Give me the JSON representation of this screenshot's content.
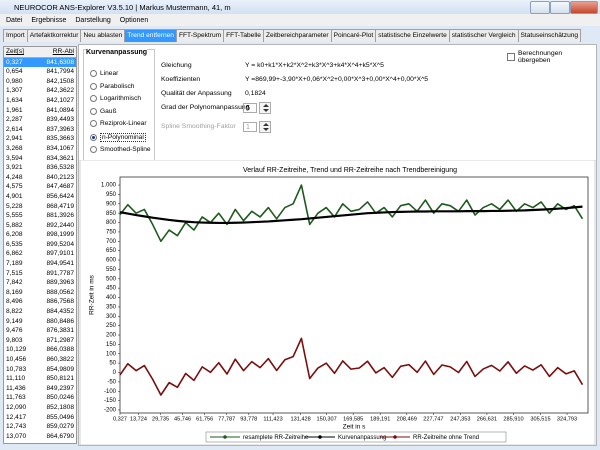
{
  "window": {
    "title": "NEUROCOR ANS-Explorer V3.5.10 | Markus Mustermann, 41, m"
  },
  "menu": [
    "Datei",
    "Ergebnisse",
    "Darstellung",
    "Optionen"
  ],
  "tabs": [
    "Import",
    "Artefaktkorrektur",
    "Neu ablasten",
    "Trend entfernen",
    "FFT-Spektrum",
    "FFT-Tabelle",
    "Zeitbereichparameter",
    "Poincaré-Plot",
    "statistische Einzelwerte",
    "statistischer Vergleich",
    "Statuseinschätzung"
  ],
  "active_tab": 3,
  "table": {
    "columns": [
      "Zeit[s]",
      "RR-Abl"
    ],
    "selected_row": 0,
    "rows": [
      [
        "0,327",
        "841,6308"
      ],
      [
        "0,654",
        "841,7994"
      ],
      [
        "0,980",
        "842,1508"
      ],
      [
        "1,307",
        "842,3622"
      ],
      [
        "1,634",
        "842,1027"
      ],
      [
        "1,961",
        "841,0894"
      ],
      [
        "2,287",
        "839,4493"
      ],
      [
        "2,614",
        "837,3963"
      ],
      [
        "2,941",
        "835,3663"
      ],
      [
        "3,268",
        "834,1067"
      ],
      [
        "3,594",
        "834,3621"
      ],
      [
        "3,921",
        "836,5328"
      ],
      [
        "4,248",
        "840,2123"
      ],
      [
        "4,575",
        "847,4687"
      ],
      [
        "4,901",
        "856,6424"
      ],
      [
        "5,228",
        "868,4719"
      ],
      [
        "5,555",
        "881,3926"
      ],
      [
        "5,882",
        "892,2440"
      ],
      [
        "6,208",
        "898,1999"
      ],
      [
        "6,535",
        "899,5204"
      ],
      [
        "6,862",
        "897,9101"
      ],
      [
        "7,189",
        "894,9541"
      ],
      [
        "7,515",
        "891,7787"
      ],
      [
        "7,842",
        "889,3963"
      ],
      [
        "8,169",
        "888,0562"
      ],
      [
        "8,496",
        "886,7568"
      ],
      [
        "8,822",
        "884,4352"
      ],
      [
        "9,149",
        "880,8486"
      ],
      [
        "9,476",
        "876,3831"
      ],
      [
        "9,803",
        "871,2987"
      ],
      [
        "10,129",
        "866,0388"
      ],
      [
        "10,456",
        "860,3822"
      ],
      [
        "10,783",
        "854,9809"
      ],
      [
        "11,110",
        "850,8121"
      ],
      [
        "11,436",
        "849,2397"
      ],
      [
        "11,763",
        "850,0246"
      ],
      [
        "12,090",
        "852,1808"
      ],
      [
        "12,417",
        "855,0496"
      ],
      [
        "12,743",
        "859,0279"
      ],
      [
        "13,070",
        "864,6790"
      ]
    ]
  },
  "fit": {
    "group_title": "Kurvenanpassung",
    "options": [
      "Linear",
      "Parabolisch",
      "Logarithmisch",
      "Gauß",
      "Reziprok-Linear",
      "n-Polynominal",
      "Smoothed-Spline"
    ],
    "selected": 5,
    "fields": [
      {
        "label": "Gleichung",
        "value": "Y = k0+k1*X+k2*X^2+k3*X^3+k4*X^4+k5*X^5"
      },
      {
        "label": "Koeffizienten",
        "value": "Y =869,99+-3,90*X+0,06*X^2+0,00*X^3+0,00*X^4+0,00*X^5"
      },
      {
        "label": "Qualität der Anpassung",
        "value": "0,1824"
      },
      {
        "label": "Grad der Polynomanpassung",
        "value": "5",
        "spinner": true
      },
      {
        "label": "Spline Smoothing-Faktor",
        "value": "1",
        "spinner": true,
        "disabled": true
      }
    ],
    "checkbox": "Berechnungen übergeben"
  },
  "chart_data": {
    "type": "line",
    "title": "Verlauf RR-Zeitreihe,  Trend und RR-Zeitreihe nach Trendbereinigung",
    "xlabel": "Zeit in s",
    "ylabel": "RR-Zeit in ms",
    "xlim": [
      0.327,
      340
    ],
    "ylim": [
      -216,
      1043
    ],
    "xticks": [
      {
        "value": 0.327,
        "label": "0,327"
      },
      {
        "value": 13.724,
        "label": "13,724"
      },
      {
        "value": 29.735,
        "label": "29,735"
      },
      {
        "value": 45.746,
        "label": "45,746"
      },
      {
        "value": 61.756,
        "label": "61,756"
      },
      {
        "value": 77.787,
        "label": "77,787"
      },
      {
        "value": 93.778,
        "label": "93,778"
      },
      {
        "value": 111.423,
        "label": "111,423"
      },
      {
        "value": 131.428,
        "label": "131,428"
      },
      {
        "value": 150.307,
        "label": "150,307"
      },
      {
        "value": 169.585,
        "label": "169,585"
      },
      {
        "value": 189.191,
        "label": "189,191"
      },
      {
        "value": 208.469,
        "label": "208,469"
      },
      {
        "value": 227.747,
        "label": "227,747"
      },
      {
        "value": 247.353,
        "label": "247,353"
      },
      {
        "value": 266.631,
        "label": "266,631"
      },
      {
        "value": 285.91,
        "label": "285,910"
      },
      {
        "value": 305.515,
        "label": "305,515"
      },
      {
        "value": 324.793,
        "label": "324,793"
      }
    ],
    "yticks": [
      {
        "value": 1000,
        "label": "1.000"
      },
      950,
      900,
      850,
      800,
      750,
      700,
      650,
      600,
      550,
      500,
      450,
      400,
      350,
      300,
      250,
      200,
      150,
      100,
      50,
      0,
      -50,
      -100,
      -150,
      -200
    ],
    "grid": false,
    "legend": "bottom",
    "x": [
      0.327,
      6,
      12,
      18,
      24,
      30,
      36,
      42,
      48,
      54,
      60,
      66,
      72,
      78,
      84,
      90,
      96,
      102,
      108,
      114,
      120,
      126,
      132,
      138,
      144,
      150,
      156,
      162,
      168,
      174,
      180,
      186,
      192,
      198,
      204,
      210,
      216,
      222,
      228,
      234,
      240,
      246,
      252,
      258,
      264,
      270,
      276,
      282,
      288,
      294,
      300,
      306,
      312,
      318,
      324,
      330,
      336
    ],
    "series": [
      {
        "name": "resamplete RR-Zeitreihe",
        "color": "#1e5a1e",
        "values": [
          842,
          895,
          850,
          870,
          790,
          700,
          760,
          730,
          800,
          760,
          830,
          800,
          850,
          790,
          870,
          810,
          860,
          830,
          880,
          820,
          880,
          900,
          1000,
          790,
          850,
          880,
          830,
          900,
          860,
          870,
          910,
          850,
          880,
          830,
          890,
          900,
          860,
          920,
          850,
          900,
          890,
          860,
          920,
          840,
          880,
          900,
          870,
          920,
          860,
          900,
          880,
          910,
          850,
          900,
          870,
          890,
          820
        ]
      },
      {
        "name": "Kurvenanpassung",
        "color": "#000000",
        "values": [
          855,
          848,
          840,
          833,
          826,
          820,
          814,
          809,
          805,
          802,
          800,
          799,
          798,
          798,
          799,
          800,
          802,
          804,
          806,
          809,
          812,
          815,
          818,
          822,
          826,
          830,
          834,
          838,
          842,
          846,
          850,
          852,
          854,
          856,
          857,
          858,
          859,
          859,
          860,
          860,
          860,
          860,
          861,
          861,
          861,
          862,
          862,
          863,
          864,
          865,
          867,
          869,
          871,
          874,
          877,
          881,
          885
        ]
      },
      {
        "name": "RR-Zeitreihe ohne Trend",
        "color": "#7a0e0e",
        "values": [
          -13,
          47,
          10,
          37,
          -36,
          -120,
          -54,
          -79,
          -5,
          -42,
          30,
          1,
          52,
          -8,
          71,
          10,
          58,
          26,
          74,
          11,
          68,
          85,
          182,
          -32,
          24,
          50,
          -4,
          62,
          18,
          24,
          60,
          -2,
          26,
          -26,
          33,
          42,
          1,
          61,
          -10,
          40,
          30,
          0,
          59,
          -21,
          19,
          38,
          8,
          57,
          -4,
          35,
          13,
          41,
          -21,
          26,
          -7,
          9,
          -65
        ]
      }
    ]
  }
}
